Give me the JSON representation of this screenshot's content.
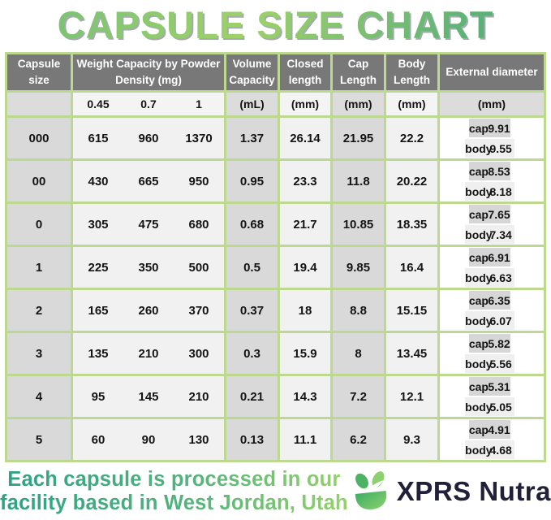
{
  "title": "CAPSULE SIZE CHART",
  "table": {
    "headers": {
      "capsule_size": "Capsule size",
      "weight_capacity": "Weight Capacity by Powder Density (mg)",
      "volume_capacity": "Volume Capacity",
      "closed_length": "Closed length",
      "cap_length": "Cap Length",
      "body_length": "Body Length",
      "external_diameter": "External diameter"
    },
    "subheaders": {
      "densities": [
        "0.45",
        "0.7",
        "1"
      ],
      "volume_unit": "(mL)",
      "closed_unit": "(mm)",
      "cap_unit": "(mm)",
      "body_unit": "(mm)",
      "external_unit": "(mm)"
    },
    "row_labels": {
      "cap": "cap",
      "body": "body"
    },
    "rows": [
      {
        "size": "000",
        "weights": [
          "615",
          "960",
          "1370"
        ],
        "volume": "1.37",
        "closed": "26.14",
        "cap_length": "21.95",
        "body_length": "22.2",
        "external_cap": "9.91",
        "external_body": "9.55"
      },
      {
        "size": "00",
        "weights": [
          "430",
          "665",
          "950"
        ],
        "volume": "0.95",
        "closed": "23.3",
        "cap_length": "11.8",
        "body_length": "20.22",
        "external_cap": "8.53",
        "external_body": "8.18"
      },
      {
        "size": "0",
        "weights": [
          "305",
          "475",
          "680"
        ],
        "volume": "0.68",
        "closed": "21.7",
        "cap_length": "10.85",
        "body_length": "18.35",
        "external_cap": "7.65",
        "external_body": "7.34"
      },
      {
        "size": "1",
        "weights": [
          "225",
          "350",
          "500"
        ],
        "volume": "0.5",
        "closed": "19.4",
        "cap_length": "9.85",
        "body_length": "16.4",
        "external_cap": "6.91",
        "external_body": "6.63"
      },
      {
        "size": "2",
        "weights": [
          "165",
          "260",
          "370"
        ],
        "volume": "0.37",
        "closed": "18",
        "cap_length": "8.8",
        "body_length": "15.15",
        "external_cap": "6.35",
        "external_body": "6.07"
      },
      {
        "size": "3",
        "weights": [
          "135",
          "210",
          "300"
        ],
        "volume": "0.3",
        "closed": "15.9",
        "cap_length": "8",
        "body_length": "13.45",
        "external_cap": "5.82",
        "external_body": "5.56"
      },
      {
        "size": "4",
        "weights": [
          "95",
          "145",
          "210"
        ],
        "volume": "0.21",
        "closed": "14.3",
        "cap_length": "7.2",
        "body_length": "12.1",
        "external_cap": "5.31",
        "external_body": "5.05"
      },
      {
        "size": "5",
        "weights": [
          "60",
          "90",
          "130"
        ],
        "volume": "0.13",
        "closed": "11.1",
        "cap_length": "6.2",
        "body_length": "9.3",
        "external_cap": "4.91",
        "external_body": "4.68"
      }
    ]
  },
  "footer": {
    "note_line1": "Each capsule is processed in our",
    "note_line2": "facility based in West Jordan, Utah",
    "brand": "XPRS Nutra"
  },
  "colors": {
    "border_green": "#bcd98f",
    "header_gray": "#787878",
    "cell_gray": "#d9d9d9",
    "cell_light": "#f1f1f1",
    "title_green_dark": "#43a57c",
    "title_green_light": "#9ed268",
    "note_teal": "#2ca285",
    "note_green": "#95d26b",
    "brand_navy": "#20203a"
  },
  "chart_data": {
    "type": "table",
    "title": "CAPSULE SIZE CHART",
    "columns": [
      "Capsule size",
      "Weight Capacity by Powder Density (mg) 0.45",
      "Weight 0.7",
      "Weight 1",
      "Volume Capacity (mL)",
      "Closed length (mm)",
      "Cap Length (mm)",
      "Body Length (mm)",
      "External diameter cap (mm)",
      "External diameter body (mm)"
    ],
    "rows": [
      [
        "000",
        615,
        960,
        1370,
        1.37,
        26.14,
        21.95,
        22.2,
        9.91,
        9.55
      ],
      [
        "00",
        430,
        665,
        950,
        0.95,
        23.3,
        11.8,
        20.22,
        8.53,
        8.18
      ],
      [
        "0",
        305,
        475,
        680,
        0.68,
        21.7,
        10.85,
        18.35,
        7.65,
        7.34
      ],
      [
        "1",
        225,
        350,
        500,
        0.5,
        19.4,
        9.85,
        16.4,
        6.91,
        6.63
      ],
      [
        "2",
        165,
        260,
        370,
        0.37,
        18,
        8.8,
        15.15,
        6.35,
        6.07
      ],
      [
        "3",
        135,
        210,
        300,
        0.3,
        15.9,
        8,
        13.45,
        5.82,
        5.56
      ],
      [
        "4",
        95,
        145,
        210,
        0.21,
        14.3,
        7.2,
        12.1,
        5.31,
        5.05
      ],
      [
        "5",
        60,
        90,
        130,
        0.13,
        11.1,
        6.2,
        9.3,
        4.91,
        4.68
      ]
    ]
  }
}
